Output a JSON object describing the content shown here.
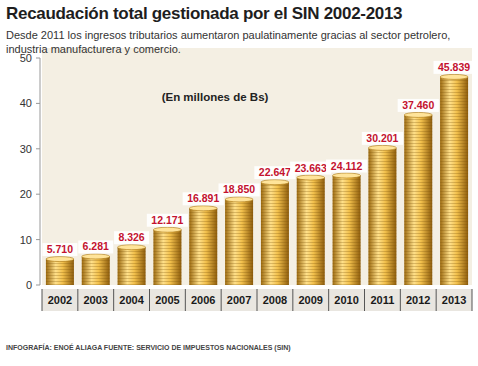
{
  "chart_data": {
    "type": "bar",
    "title": "Recaudación total gestionada por el SIN 2002-2013",
    "subtitle": "Desde 2011 los ingresos tributarios aumentaron paulatinamente gracias al sector petrolero, industria manufacturera y comercio.",
    "y_label": "(En millones de Bs)",
    "source": "INFOGRAFÍA: ENOÉ ALIAGA FUENTE: SERVICIO DE IMPUESTOS NACIONALES (SIN)",
    "categories": [
      "2002",
      "2003",
      "2004",
      "2005",
      "2006",
      "2007",
      "2008",
      "2009",
      "2010",
      "2011",
      "2012",
      "2013"
    ],
    "values": [
      5.71,
      6.281,
      8.326,
      12.171,
      16.891,
      18.85,
      22.647,
      23.663,
      24.112,
      30.201,
      37.46,
      45.839
    ],
    "value_labels": [
      "5.710",
      "6.281",
      "8.326",
      "12.171",
      "16.891",
      "18.850",
      "22.647",
      "23.663",
      "24.112",
      "30.201",
      "37.460",
      "45.839"
    ],
    "color": "#e3a92c",
    "ylim": [
      0,
      50
    ],
    "yticks": [
      0,
      10,
      20,
      30,
      40,
      50
    ],
    "grid": false,
    "data_labels": true
  }
}
